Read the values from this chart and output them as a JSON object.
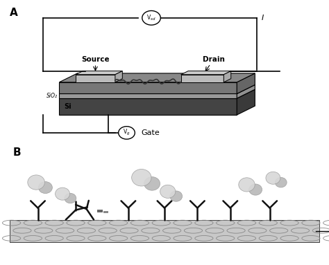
{
  "bg_color": "#ffffff",
  "panel_A_label": "A",
  "panel_B_label": "B",
  "source_label": "Source",
  "drain_label": "Drain",
  "sio2_label": "SiO₂",
  "si_label": "Si",
  "gate_label": "Gate",
  "vsd_label": "V$_{sd}$",
  "vg_label": "V$_{g}$",
  "I_label": "I",
  "line_color": "#000000",
  "si_color": "#555555",
  "sio2_color": "#aaaaaa",
  "top_surface_color": "#888888",
  "si_front_color": "#444444",
  "sio2_front_color": "#999999",
  "top_front_color": "#777777",
  "electrode_top_color": "#cccccc",
  "electrode_front_color": "#bbbbbb",
  "antibody_color": "#111111",
  "antigen_light": "#d8d8d8",
  "antigen_mid": "#b8b8b8",
  "antigen_dark": "#989898",
  "cnt_fill": "#c8c8c8",
  "cnt_edge": "#888888"
}
